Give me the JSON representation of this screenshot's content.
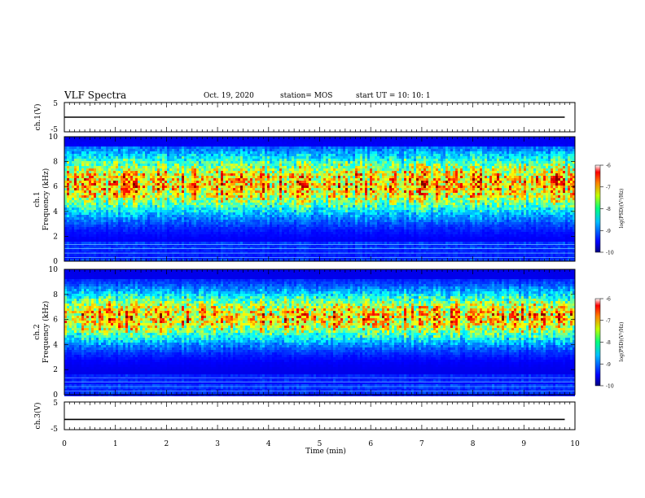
{
  "header": {
    "title": "VLF Spectra",
    "date": "Oct. 19, 2020",
    "station": "station= MOS",
    "start": "start  UT =   10: 10: 1"
  },
  "chart_data": [
    {
      "type": "line",
      "panel": "ch1-waveform",
      "ylabel": "ch.1(V)",
      "ylim": [
        -5,
        5
      ],
      "yticks": [
        "5",
        "-5"
      ],
      "x": [
        0,
        9.8
      ],
      "values": [
        0,
        0
      ]
    },
    {
      "type": "heatmap",
      "panel": "ch1-spectrogram",
      "ylabel": "ch.1\nFrequency (kHz)",
      "ylim": [
        0,
        10
      ],
      "yticks": [
        "0",
        "2",
        "4",
        "6",
        "8",
        "10"
      ],
      "colorbar": {
        "label": "log(PSD)(V²/Hz)",
        "range": [
          -10,
          -6
        ],
        "ticks": [
          "-6",
          "-7",
          "-8",
          "-9",
          "-10"
        ]
      }
    },
    {
      "type": "heatmap",
      "panel": "ch2-spectrogram",
      "ylabel": "ch.2\nFrequency (kHz)",
      "ylim": [
        0,
        10
      ],
      "yticks": [
        "0",
        "2",
        "4",
        "6",
        "8",
        "10"
      ],
      "colorbar": {
        "label": "log(PSD)(V²/Hz)",
        "range": [
          -10,
          -6
        ],
        "ticks": [
          "-6",
          "-7",
          "-8",
          "-9",
          "-10"
        ]
      }
    },
    {
      "type": "line",
      "panel": "ch3-waveform",
      "ylabel": "ch.3(V)",
      "ylim": [
        -5,
        5
      ],
      "yticks": [
        "5",
        "-5"
      ],
      "x": [
        0,
        9.8
      ],
      "values": [
        -1.3,
        -1.3
      ]
    }
  ],
  "xaxis": {
    "label": "Time (min)",
    "range": [
      0,
      10
    ],
    "ticks": [
      "0",
      "1",
      "2",
      "3",
      "4",
      "5",
      "6",
      "7",
      "8",
      "9",
      "10"
    ]
  }
}
